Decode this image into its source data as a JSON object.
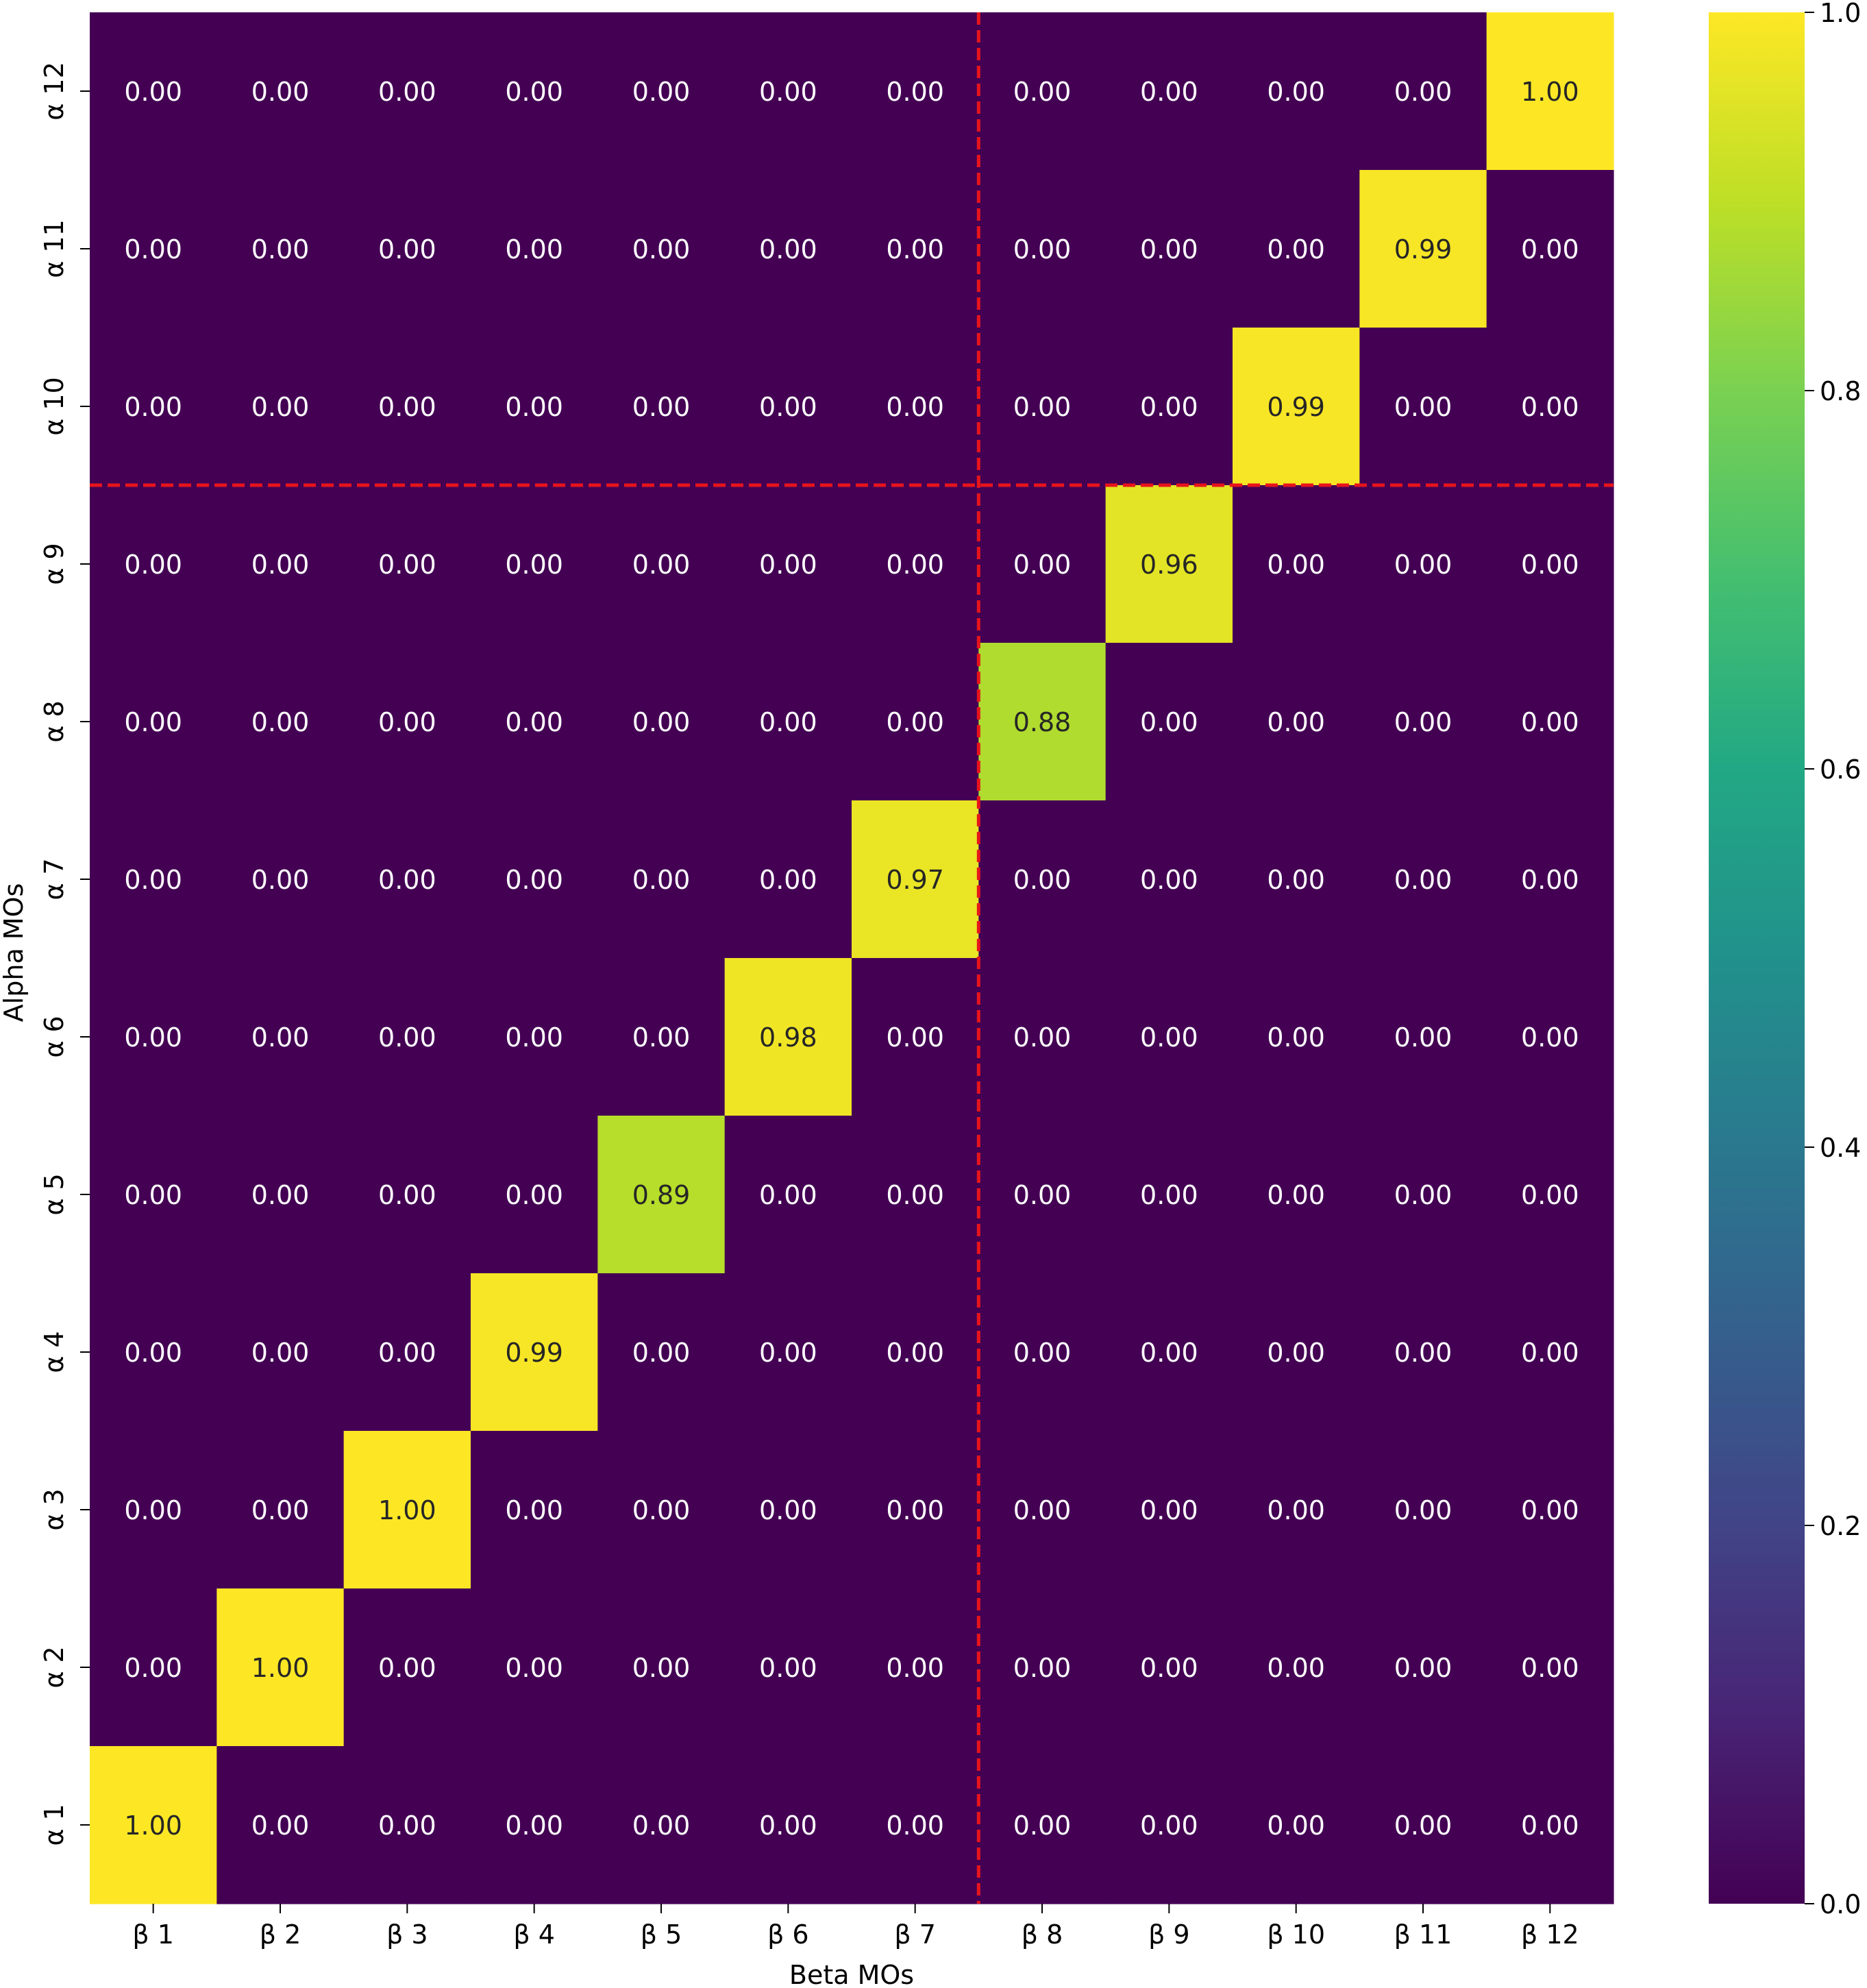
{
  "chart_data": {
    "type": "heatmap",
    "title": "",
    "xlabel": "Beta MOs",
    "ylabel": "Alpha MOs",
    "x_categories": [
      "β 1",
      "β 2",
      "β 3",
      "β 4",
      "β 5",
      "β 6",
      "β 7",
      "β 8",
      "β 9",
      "β 10",
      "β 11",
      "β 12"
    ],
    "y_categories_top_to_bottom": [
      "α 12",
      "α 11",
      "α 10",
      "α 9",
      "α 8",
      "α 7",
      "α 6",
      "α 5",
      "α 4",
      "α 3",
      "α 2",
      "α 1"
    ],
    "values_top_to_bottom": [
      [
        0.0,
        0.0,
        0.0,
        0.0,
        0.0,
        0.0,
        0.0,
        0.0,
        0.0,
        0.0,
        0.0,
        1.0
      ],
      [
        0.0,
        0.0,
        0.0,
        0.0,
        0.0,
        0.0,
        0.0,
        0.0,
        0.0,
        0.0,
        0.99,
        0.0
      ],
      [
        0.0,
        0.0,
        0.0,
        0.0,
        0.0,
        0.0,
        0.0,
        0.0,
        0.0,
        0.99,
        0.0,
        0.0
      ],
      [
        0.0,
        0.0,
        0.0,
        0.0,
        0.0,
        0.0,
        0.0,
        0.0,
        0.96,
        0.0,
        0.0,
        0.0
      ],
      [
        0.0,
        0.0,
        0.0,
        0.0,
        0.0,
        0.0,
        0.0,
        0.88,
        0.0,
        0.0,
        0.0,
        0.0
      ],
      [
        0.0,
        0.0,
        0.0,
        0.0,
        0.0,
        0.0,
        0.97,
        0.0,
        0.0,
        0.0,
        0.0,
        0.0
      ],
      [
        0.0,
        0.0,
        0.0,
        0.0,
        0.0,
        0.98,
        0.0,
        0.0,
        0.0,
        0.0,
        0.0,
        0.0
      ],
      [
        0.0,
        0.0,
        0.0,
        0.0,
        0.89,
        0.0,
        0.0,
        0.0,
        0.0,
        0.0,
        0.0,
        0.0
      ],
      [
        0.0,
        0.0,
        0.0,
        0.99,
        0.0,
        0.0,
        0.0,
        0.0,
        0.0,
        0.0,
        0.0,
        0.0
      ],
      [
        0.0,
        0.0,
        1.0,
        0.0,
        0.0,
        0.0,
        0.0,
        0.0,
        0.0,
        0.0,
        0.0,
        0.0
      ],
      [
        0.0,
        1.0,
        0.0,
        0.0,
        0.0,
        0.0,
        0.0,
        0.0,
        0.0,
        0.0,
        0.0,
        0.0
      ],
      [
        1.0,
        0.0,
        0.0,
        0.0,
        0.0,
        0.0,
        0.0,
        0.0,
        0.0,
        0.0,
        0.0,
        0.0
      ]
    ],
    "value_format_decimals": 2,
    "colormap": "viridis",
    "colorbar": {
      "range": [
        0.0,
        1.0
      ],
      "ticks": [
        "0.0",
        "0.2",
        "0.4",
        "0.6",
        "0.8",
        "1.0"
      ]
    },
    "divider_lines": {
      "vertical_between_x": [
        "β 7",
        "β 8"
      ],
      "horizontal_between_y": [
        "α 10",
        "α 9"
      ],
      "color": "#e8141c",
      "style": "dashed"
    }
  }
}
